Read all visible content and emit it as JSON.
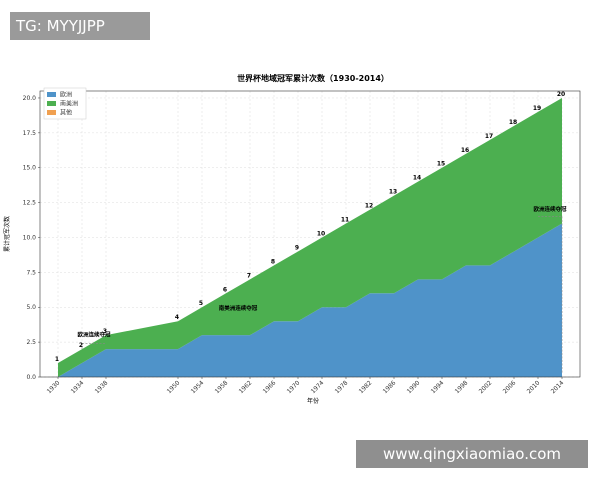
{
  "watermarks": {
    "top": "TG: MYYJJPP",
    "bottom": "www.qingxiaomiao.com"
  },
  "colors": {
    "europe": "#4f93c9",
    "south_america": "#4caf50",
    "other": "#f0a050",
    "grid": "#dddddd"
  },
  "chart_data": {
    "type": "area",
    "title": "世界杯地域冠军累计次数（1930-2014）",
    "xlabel": "年份",
    "ylabel": "累计冠军次数",
    "x": [
      1930,
      1934,
      1938,
      1950,
      1954,
      1958,
      1962,
      1966,
      1970,
      1974,
      1978,
      1982,
      1986,
      1990,
      1994,
      1998,
      2002,
      2006,
      2010,
      2014
    ],
    "x_ticks": [
      "1930",
      "1934",
      "1938",
      "1950",
      "1954",
      "1958",
      "1962",
      "1966",
      "1970",
      "1974",
      "1978",
      "1982",
      "1986",
      "1990",
      "1994",
      "1998",
      "2002",
      "2006",
      "2010",
      "2014"
    ],
    "ylim": [
      0,
      20.5
    ],
    "y_ticks": [
      "0.0",
      "2.5",
      "5.0",
      "7.5",
      "10.0",
      "12.5",
      "15.0",
      "17.5",
      "20.0"
    ],
    "y_tick_values": [
      0,
      2.5,
      5,
      7.5,
      10,
      12.5,
      15,
      17.5,
      20
    ],
    "series": [
      {
        "name": "欧洲",
        "values": [
          0,
          1,
          2,
          2,
          3,
          3,
          3,
          4,
          4,
          5,
          5,
          6,
          6,
          7,
          7,
          8,
          8,
          9,
          10,
          11
        ]
      },
      {
        "name": "南美洲",
        "values": [
          1,
          1,
          1,
          2,
          2,
          3,
          4,
          4,
          5,
          5,
          6,
          6,
          7,
          7,
          8,
          8,
          9,
          9,
          9,
          9
        ]
      },
      {
        "name": "其他",
        "values": [
          0,
          0,
          0,
          0,
          0,
          0,
          0,
          0,
          0,
          0,
          0,
          0,
          0,
          0,
          0,
          0,
          0,
          0,
          0,
          0
        ]
      }
    ],
    "totals": [
      1,
      2,
      3,
      4,
      5,
      6,
      7,
      8,
      9,
      10,
      11,
      12,
      13,
      14,
      15,
      16,
      17,
      18,
      19,
      20
    ],
    "total_labels": [
      "1",
      "2",
      "3",
      "4",
      "5",
      "6",
      "7",
      "8",
      "9",
      "10",
      "11",
      "12",
      "13",
      "14",
      "15",
      "16",
      "17",
      "18",
      "19",
      "20"
    ],
    "annotations": [
      {
        "text": "欧洲连续夺冠",
        "x": 1936,
        "y": 2.9
      },
      {
        "text": "南美洲连续夺冠",
        "x": 1960,
        "y": 4.8
      },
      {
        "text": "欧洲连续夺冠",
        "x": 2012,
        "y": 11.9
      }
    ],
    "bracket_1934": {
      "x1": 1934,
      "x2": 1938,
      "y": 2.4
    },
    "bracket_2014": {
      "x1": 2014,
      "y1": 11.5
    },
    "legend_position": "top-left",
    "grid": true
  }
}
